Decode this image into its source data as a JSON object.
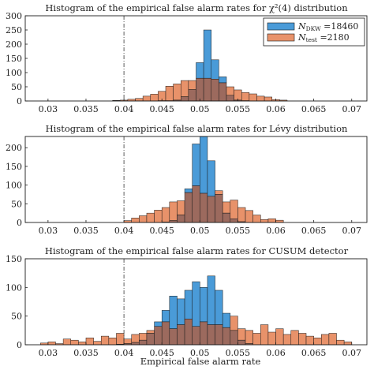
{
  "colors": {
    "dkw": "#4a9bd8",
    "test": "#e8926a",
    "overlap": "#9c6a5e",
    "edge": "#1a1a1a"
  },
  "chart_data": [
    {
      "type": "bar",
      "title": "Histogram of the empirical false alarm rates for χ²(4) distribution",
      "xlabel": "",
      "ylabel": "",
      "xlim": [
        0.027,
        0.072
      ],
      "ylim": [
        0,
        300
      ],
      "xticks": [
        "0.03",
        "0.035",
        "0.04",
        "0.045",
        "0.05",
        "0.055",
        "0.06",
        "0.065",
        "0.07"
      ],
      "yticks": [
        "0",
        "50",
        "100",
        "150",
        "200",
        "250",
        "300"
      ],
      "vline": 0.04,
      "legend": {
        "position": "top-right",
        "items": [
          "N_DKW = 18460",
          "N_test = 2180"
        ]
      },
      "bin_start": 0.0385,
      "bin_width": 0.001,
      "series": [
        {
          "name": "N_DKW = 18460",
          "values": [
            0,
            0,
            0,
            0,
            0,
            0,
            1,
            1,
            3,
            15,
            40,
            135,
            250,
            145,
            85,
            20,
            3,
            1,
            0,
            0,
            0,
            0,
            0
          ]
        },
        {
          "name": "N_test = 2180",
          "values": [
            2,
            3,
            6,
            9,
            17,
            24,
            34,
            52,
            60,
            72,
            72,
            80,
            80,
            77,
            64,
            50,
            39,
            30,
            25,
            17,
            14,
            5,
            3
          ]
        }
      ]
    },
    {
      "type": "bar",
      "title": "Histogram of the empirical false alarm rates for Lévy distribution",
      "xlabel": "",
      "ylabel": "",
      "xlim": [
        0.027,
        0.072
      ],
      "ylim": [
        0,
        230
      ],
      "xticks": [
        "0.03",
        "0.035",
        "0.04",
        "0.045",
        "0.05",
        "0.055",
        "0.06",
        "0.065",
        "0.07"
      ],
      "yticks": [
        "0",
        "50",
        "100",
        "150",
        "200"
      ],
      "vline": 0.04,
      "bin_start": 0.04,
      "bin_width": 0.001,
      "series": [
        {
          "name": "N_DKW = 18460",
          "values": [
            0,
            0,
            0,
            0,
            0,
            1,
            5,
            20,
            90,
            210,
            230,
            165,
            75,
            25,
            10,
            2,
            0,
            0,
            0,
            0,
            0
          ]
        },
        {
          "name": "N_test = 2180",
          "values": [
            5,
            12,
            18,
            25,
            33,
            40,
            55,
            58,
            80,
            98,
            78,
            70,
            85,
            55,
            60,
            40,
            32,
            20,
            8,
            10,
            6
          ]
        }
      ]
    },
    {
      "type": "bar",
      "title": "Histogram of the empirical false alarm rates for CUSUM detector",
      "xlabel": "Empirical false alarm rate",
      "ylabel": "",
      "xlim": [
        0.027,
        0.072
      ],
      "ylim": [
        0,
        150
      ],
      "xticks": [
        "0.03",
        "0.035",
        "0.04",
        "0.045",
        "0.05",
        "0.055",
        "0.06",
        "0.065",
        "0.07"
      ],
      "yticks": [
        "0",
        "50",
        "100",
        "150"
      ],
      "vline": 0.04,
      "bin_start": 0.029,
      "bin_width": 0.001,
      "series": [
        {
          "name": "N_DKW = 18460",
          "values": [
            0,
            0,
            0,
            0,
            0,
            0,
            0,
            0,
            0,
            0,
            1,
            2,
            4,
            8,
            20,
            40,
            60,
            85,
            80,
            95,
            110,
            100,
            120,
            95,
            55,
            25,
            8,
            2,
            0,
            0,
            0,
            0,
            0,
            0,
            0,
            0,
            0,
            0,
            0,
            0,
            0
          ]
        },
        {
          "name": "N_test = 2180",
          "values": [
            3,
            5,
            2,
            10,
            8,
            5,
            12,
            6,
            15,
            12,
            20,
            10,
            18,
            20,
            25,
            32,
            40,
            28,
            35,
            45,
            32,
            40,
            35,
            35,
            30,
            50,
            28,
            25,
            20,
            35,
            22,
            28,
            18,
            25,
            20,
            15,
            12,
            18,
            20,
            8,
            5
          ]
        }
      ]
    }
  ]
}
